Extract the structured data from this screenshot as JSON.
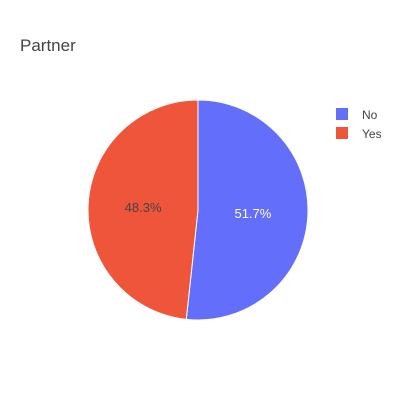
{
  "chart_data": {
    "type": "pie",
    "title": "Partner",
    "labels": [
      "No",
      "Yes"
    ],
    "values": [
      51.7,
      48.3
    ],
    "text_labels": [
      "51.7%",
      "48.3%"
    ],
    "colors": [
      "#636efa",
      "#ef553b"
    ],
    "label_colors": [
      "#ffffff",
      "#444444"
    ],
    "direction": "clockwise",
    "start_angle_deg": 90,
    "legend_position": "top-right"
  },
  "colors": {
    "title": "#444444",
    "legend_text": "#444444",
    "slice_border": "#ffffff"
  }
}
